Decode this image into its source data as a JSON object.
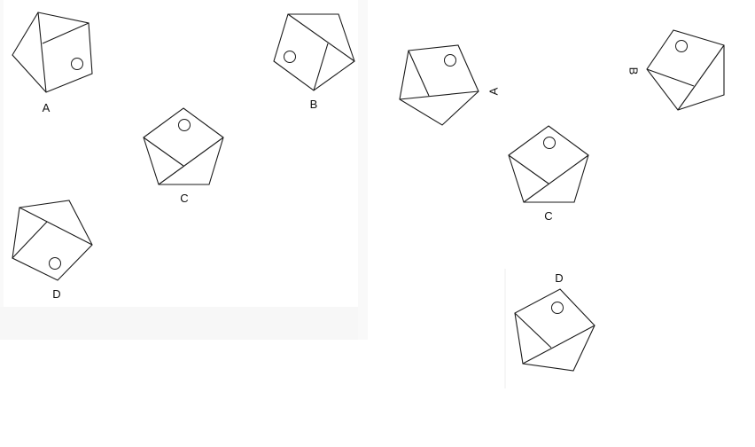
{
  "colors": {
    "panel_shade": "#f7f7f7",
    "line": "#1a1a1a",
    "label": "#111111"
  },
  "left_panel": {
    "figures": [
      {
        "label": "A"
      },
      {
        "label": "B"
      },
      {
        "label": "C"
      },
      {
        "label": "D"
      }
    ]
  },
  "right_panel": {
    "figures": [
      {
        "label": "A"
      },
      {
        "label": "B"
      },
      {
        "label": "C"
      },
      {
        "label": "D"
      }
    ]
  }
}
